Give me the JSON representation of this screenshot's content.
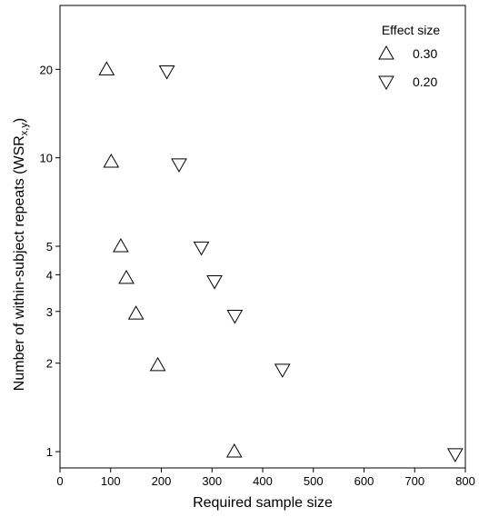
{
  "chart_data": {
    "type": "scatter",
    "xlabel": "Required sample size",
    "ylabel_main": "Number of within-subject repeats (WSR",
    "ylabel_sub": "x,y",
    "ylabel_end": ")",
    "x_ticks": [
      0,
      100,
      200,
      300,
      400,
      500,
      600,
      700,
      800
    ],
    "x_tick_labels": [
      "0",
      "100",
      "200",
      "300",
      "400",
      "500",
      "600",
      "700",
      "800"
    ],
    "y_ticks": [
      1,
      2,
      3,
      4,
      5,
      10,
      20
    ],
    "y_tick_labels": [
      "1",
      "2",
      "3",
      "4",
      "5",
      "10",
      "20"
    ],
    "xlim": [
      0,
      800
    ],
    "ylim": [
      0.88,
      33
    ],
    "y_scale": "log",
    "grid": false,
    "legend": {
      "title": "Effect size",
      "placement": "top-right",
      "entries": [
        {
          "label": "0.30",
          "marker": "triangle-up"
        },
        {
          "label": "0.20",
          "marker": "triangle-down"
        }
      ]
    },
    "series": [
      {
        "name": "0.30",
        "marker": "triangle-up",
        "points": [
          {
            "x": 92,
            "y": 20
          },
          {
            "x": 101,
            "y": 9.7
          },
          {
            "x": 120,
            "y": 5
          },
          {
            "x": 131,
            "y": 3.9
          },
          {
            "x": 150,
            "y": 2.95
          },
          {
            "x": 193,
            "y": 1.97
          },
          {
            "x": 344,
            "y": 1.0
          }
        ]
      },
      {
        "name": "0.20",
        "marker": "triangle-down",
        "points": [
          {
            "x": 211,
            "y": 19.7
          },
          {
            "x": 235,
            "y": 9.5
          },
          {
            "x": 279,
            "y": 4.95
          },
          {
            "x": 305,
            "y": 3.8
          },
          {
            "x": 345,
            "y": 2.9
          },
          {
            "x": 439,
            "y": 1.9
          },
          {
            "x": 780,
            "y": 0.98
          }
        ]
      }
    ]
  }
}
